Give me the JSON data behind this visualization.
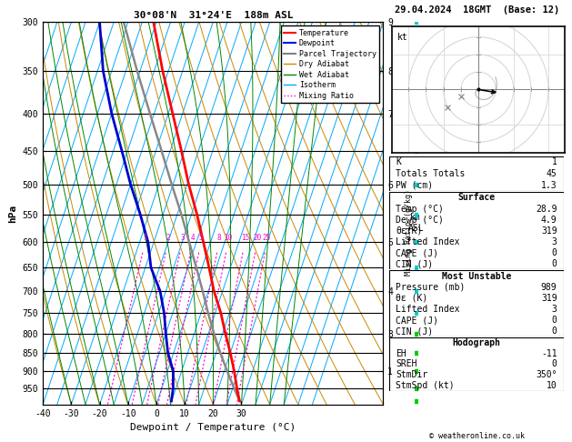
{
  "title_left": "30°08'N  31°24'E  188m ASL",
  "title_right": "29.04.2024  18GMT  (Base: 12)",
  "xlabel": "Dewpoint / Temperature (°C)",
  "ylabel_left": "hPa",
  "colors": {
    "temperature": "#ff0000",
    "dewpoint": "#0000cc",
    "parcel": "#888888",
    "dry_adiabat": "#cc8800",
    "wet_adiabat": "#008800",
    "isotherm": "#00aaff",
    "mixing_ratio": "#ff00cc",
    "background": "#ffffff",
    "grid": "#000000"
  },
  "temperature_profile": {
    "pressure": [
      989,
      950,
      900,
      850,
      800,
      750,
      700,
      650,
      600,
      550,
      500,
      450,
      400,
      350,
      300
    ],
    "temperature": [
      28.9,
      26.5,
      23.5,
      20.0,
      16.0,
      12.0,
      7.0,
      2.5,
      -2.5,
      -8.0,
      -14.5,
      -21.0,
      -28.5,
      -37.0,
      -46.0
    ]
  },
  "dewpoint_profile": {
    "pressure": [
      989,
      950,
      900,
      850,
      800,
      750,
      700,
      650,
      600,
      550,
      500,
      450,
      400,
      350,
      300
    ],
    "dewpoint": [
      4.9,
      4.0,
      2.0,
      -2.0,
      -5.0,
      -8.0,
      -12.0,
      -18.0,
      -22.0,
      -28.0,
      -35.0,
      -42.0,
      -50.0,
      -58.0,
      -65.0
    ]
  },
  "parcel_profile": {
    "pressure": [
      989,
      950,
      900,
      850,
      800,
      750,
      700,
      650,
      600,
      550,
      500,
      450,
      400,
      350,
      300
    ],
    "temperature": [
      28.9,
      25.5,
      21.0,
      16.5,
      12.0,
      7.5,
      3.0,
      -2.0,
      -7.5,
      -13.5,
      -20.5,
      -28.0,
      -36.5,
      -46.0,
      -56.5
    ]
  },
  "mixing_ratio_values": [
    1,
    2,
    3,
    4,
    5,
    8,
    10,
    15,
    20,
    25
  ],
  "stats": {
    "K": 1,
    "Totals_Totals": 45,
    "PW_cm": 1.3,
    "Surface_Temp": 28.9,
    "Surface_Dewp": 4.9,
    "Surface_theta_e": 319,
    "Surface_Lifted_Index": 3,
    "Surface_CAPE": 0,
    "Surface_CIN": 0,
    "MU_Pressure": 989,
    "MU_theta_e": 319,
    "MU_Lifted_Index": 3,
    "MU_CAPE": 0,
    "MU_CIN": 0,
    "Hodo_EH": -11,
    "Hodo_SREH": 0,
    "Hodo_StmDir": "350°",
    "Hodo_StmSpd": 10
  }
}
